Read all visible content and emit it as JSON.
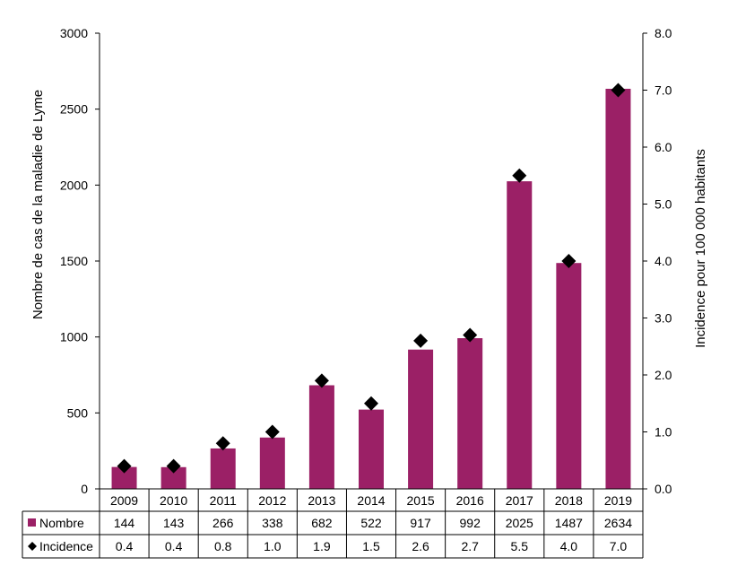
{
  "chart_data": {
    "type": "bar",
    "categories": [
      "2009",
      "2010",
      "2011",
      "2012",
      "2013",
      "2014",
      "2015",
      "2016",
      "2017",
      "2018",
      "2019"
    ],
    "series": [
      {
        "name": "Nombre",
        "type": "bar",
        "axis": "left",
        "color": "#9B2066",
        "values": [
          144,
          143,
          266,
          338,
          682,
          522,
          917,
          992,
          2025,
          1487,
          2634
        ]
      },
      {
        "name": "Incidence",
        "type": "scatter",
        "axis": "right",
        "color": "#000000",
        "marker": "diamond",
        "values": [
          0.4,
          0.4,
          0.8,
          1.0,
          1.9,
          1.5,
          2.6,
          2.7,
          5.5,
          4.0,
          7.0
        ]
      }
    ],
    "table_values": {
      "nombre": [
        "144",
        "143",
        "266",
        "338",
        "682",
        "522",
        "917",
        "992",
        "2025",
        "1487",
        "2634"
      ],
      "incidence": [
        "0.4",
        "0.4",
        "0.8",
        "1.0",
        "1.9",
        "1.5",
        "2.6",
        "2.7",
        "5.5",
        "4.0",
        "7.0"
      ]
    },
    "ylabel": "Nombre de cas de la maladie de Lyme",
    "y2label": "Incidence pour 100 000 habitants",
    "ylim": [
      0,
      3000
    ],
    "y2lim": [
      0,
      8
    ],
    "yticks": [
      "0",
      "500",
      "1000",
      "1500",
      "2000",
      "2500",
      "3000"
    ],
    "y2ticks": [
      "0.0",
      "1.0",
      "2.0",
      "3.0",
      "4.0",
      "5.0",
      "6.0",
      "7.0",
      "8.0"
    ],
    "grid": false,
    "legend": "data-table"
  }
}
